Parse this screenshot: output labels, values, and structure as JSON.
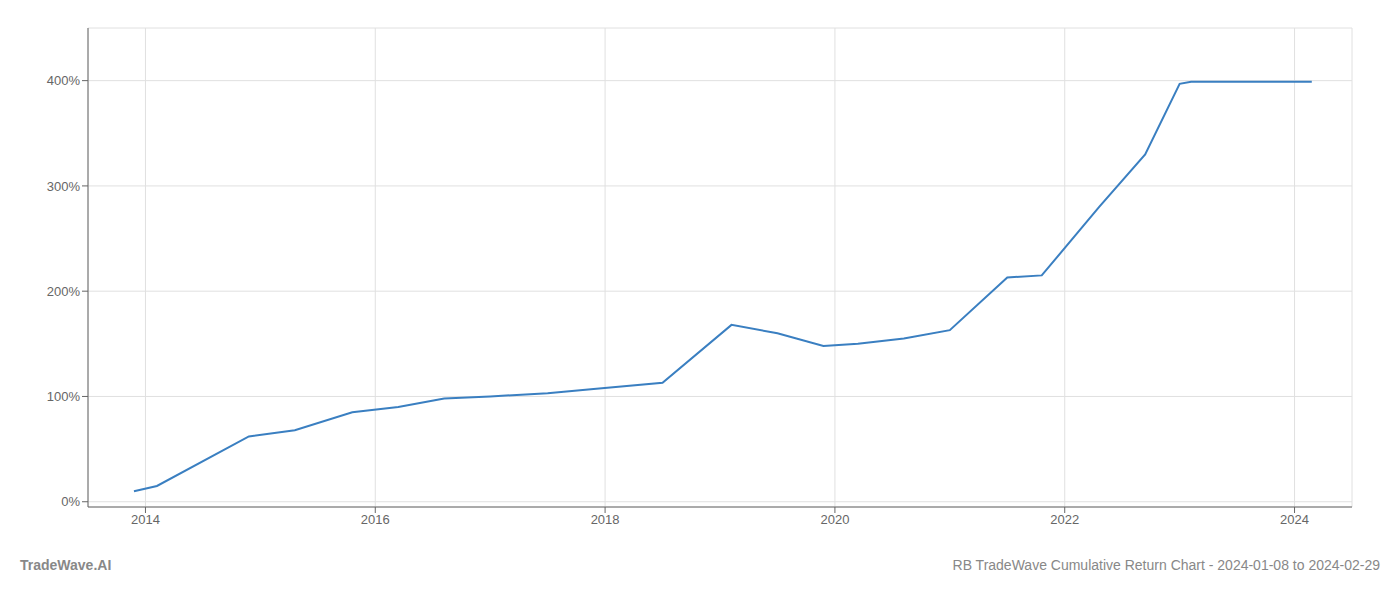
{
  "chart_data": {
    "type": "line",
    "title": "RB TradeWave Cumulative Return Chart - 2024-01-08 to 2024-02-29",
    "annotations": [
      "TradeWave.AI"
    ],
    "x": [
      2013.9,
      2014.1,
      2014.9,
      2015.3,
      2015.8,
      2016.2,
      2016.6,
      2017.0,
      2017.5,
      2017.9,
      2018.5,
      2019.1,
      2019.5,
      2019.9,
      2020.2,
      2020.6,
      2021.0,
      2021.5,
      2021.8,
      2022.3,
      2022.7,
      2023.0,
      2023.1,
      2023.5,
      2024.0,
      2024.15
    ],
    "values": [
      10,
      15,
      62,
      68,
      85,
      90,
      98,
      100,
      103,
      107,
      113,
      168,
      160,
      148,
      150,
      155,
      163,
      213,
      215,
      280,
      330,
      397,
      399,
      399,
      399,
      399
    ],
    "color": "#3a7fc1",
    "xlim": [
      2013.5,
      2024.5
    ],
    "ylim": [
      -5,
      450
    ],
    "xticks": [
      2014,
      2016,
      2018,
      2020,
      2022,
      2024
    ],
    "yticks": [
      {
        "value": 0,
        "label": "0%"
      },
      {
        "value": 100,
        "label": "100%"
      },
      {
        "value": 200,
        "label": "200%"
      },
      {
        "value": 300,
        "label": "300%"
      },
      {
        "value": 400,
        "label": "400%"
      }
    ],
    "grid": true
  }
}
